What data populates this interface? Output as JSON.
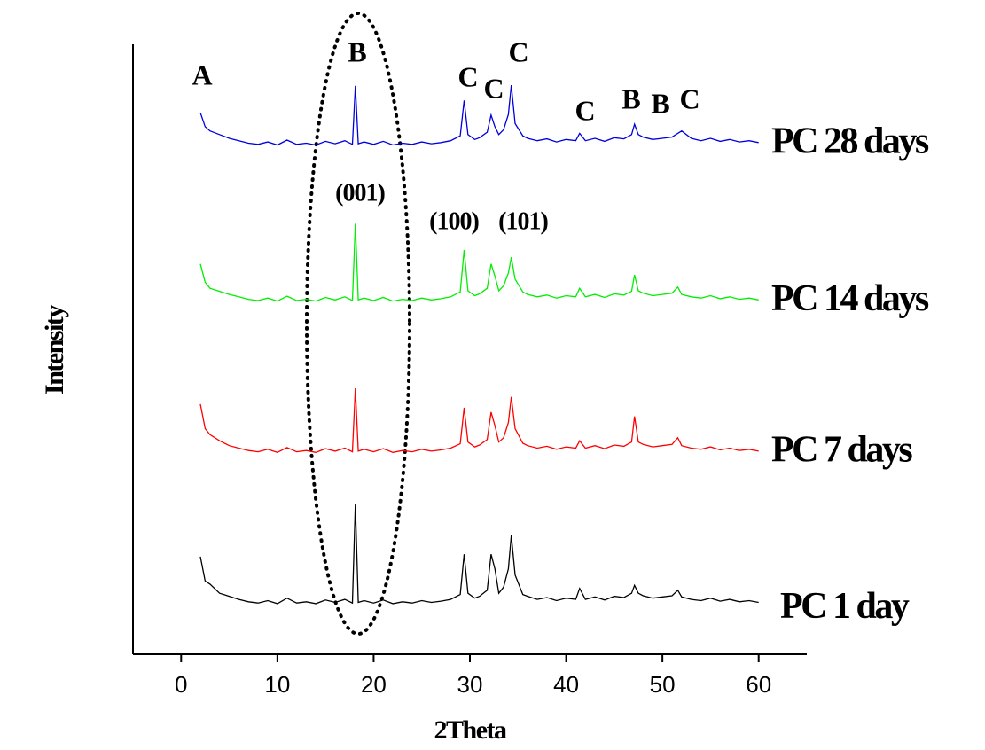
{
  "chart_data": {
    "type": "line",
    "xlabel": "2Theta",
    "ylabel": "Intensity",
    "xlim": [
      -5,
      65
    ],
    "xticks": [
      0,
      10,
      20,
      30,
      40,
      50,
      60
    ],
    "ylim": [
      0,
      100
    ],
    "x": [
      2,
      2.5,
      3,
      4,
      5,
      6,
      7,
      8,
      9,
      10,
      11,
      12,
      13,
      14,
      15,
      16,
      17,
      17.8,
      18.1,
      18.4,
      19,
      20,
      21,
      22,
      23,
      24,
      25,
      26,
      27,
      28,
      29,
      29.4,
      29.8,
      30.5,
      31,
      31.8,
      32.2,
      32.6,
      33,
      33.5,
      34,
      34.3,
      34.7,
      35.5,
      36,
      37,
      38,
      39,
      40,
      41,
      41.4,
      42,
      43,
      44,
      45,
      46,
      46.8,
      47.1,
      47.5,
      48,
      49,
      50,
      51,
      51.6,
      52,
      53,
      54,
      55,
      56,
      57,
      58,
      59,
      60
    ],
    "series": [
      {
        "name": "PC 1 day",
        "color": "#000000",
        "values": [
          16,
          12,
          11.5,
          10,
          9.5,
          9,
          8.6,
          8.4,
          8.8,
          8.3,
          9.2,
          8.4,
          8.6,
          8.3,
          8.9,
          8.5,
          9,
          8.4,
          24.7,
          8.5,
          8.8,
          8.4,
          8.9,
          8.3,
          8.6,
          8.4,
          8.8,
          8.5,
          8.7,
          9,
          9.8,
          16.4,
          10,
          9.2,
          9.5,
          10.5,
          16.4,
          14,
          10,
          11,
          14,
          19.5,
          13,
          9.8,
          9.5,
          9,
          9.3,
          8.8,
          9.2,
          9,
          10.8,
          9,
          9.4,
          8.9,
          9.5,
          9.3,
          10,
          11.3,
          10,
          9.6,
          9.2,
          9.4,
          9.6,
          10.5,
          9.4,
          9,
          8.8,
          9.2,
          8.7,
          9,
          8.6,
          8.8,
          8.5
        ]
      },
      {
        "name": "PC 7 days",
        "color": "#ff0000",
        "values": [
          41,
          37,
          36,
          35,
          34.2,
          33.8,
          33.4,
          33.2,
          33.6,
          33.1,
          33.9,
          33.2,
          33.4,
          33.1,
          33.7,
          33.3,
          33.8,
          33.2,
          43.6,
          33.3,
          33.6,
          33.2,
          33.7,
          33.1,
          33.4,
          33.2,
          33.6,
          33.3,
          33.5,
          33.8,
          34.5,
          40.4,
          34.8,
          34,
          34.3,
          35.2,
          39.7,
          37.5,
          34.8,
          35.5,
          38,
          42.2,
          37,
          34.6,
          34.2,
          33.8,
          34.1,
          33.6,
          34,
          33.8,
          35,
          33.8,
          34.2,
          33.7,
          34.3,
          34.1,
          34.8,
          39,
          34.8,
          34.4,
          34,
          34.2,
          34.4,
          35.5,
          34.2,
          33.8,
          33.6,
          34,
          33.5,
          33.8,
          33.4,
          33.6,
          33.3
        ]
      },
      {
        "name": "PC 14 days",
        "color": "#00ee00",
        "values": [
          64,
          61,
          60,
          59.5,
          59,
          58.6,
          58.2,
          58,
          58.4,
          57.9,
          58.7,
          58,
          58.2,
          57.9,
          58.5,
          58.1,
          58.6,
          58,
          70.6,
          58.1,
          58.4,
          58,
          58.5,
          57.9,
          58.2,
          58,
          58.4,
          58.1,
          58.3,
          58.6,
          59.4,
          66.3,
          59.6,
          58.8,
          59.1,
          60,
          64,
          62,
          59.6,
          60.4,
          62.5,
          65.1,
          61.5,
          59.4,
          59,
          58.6,
          58.9,
          58.4,
          58.8,
          58.6,
          60,
          58.6,
          59,
          58.5,
          59.1,
          58.9,
          59.5,
          62.2,
          59.6,
          59.2,
          58.8,
          59,
          59.2,
          60.2,
          59,
          58.6,
          58.4,
          58.8,
          58.3,
          58.6,
          58.2,
          58.4,
          58.1
        ]
      },
      {
        "name": "PC 28 days",
        "color": "#0000dd",
        "values": [
          88.8,
          86.5,
          85.8,
          85.2,
          84.6,
          84.2,
          83.8,
          83.6,
          84,
          83.5,
          84.3,
          83.6,
          83.8,
          83.5,
          84.1,
          83.7,
          84.2,
          83.6,
          93.2,
          83.7,
          84,
          83.6,
          84.1,
          83.5,
          83.8,
          83.6,
          84,
          83.7,
          83.9,
          84.2,
          85,
          90.8,
          85.2,
          84.4,
          84.7,
          85.6,
          88.4,
          86.5,
          85.2,
          86,
          88.5,
          93.3,
          87,
          85,
          84.6,
          84.2,
          84.5,
          84,
          84.4,
          84.2,
          85.4,
          84.2,
          84.6,
          84.1,
          84.7,
          84.5,
          85.2,
          86.9,
          85.2,
          84.8,
          84.4,
          84.6,
          84.8,
          85.4,
          85.8,
          84.6,
          84.2,
          84.6,
          84.1,
          84.4,
          84,
          84.2,
          83.9
        ]
      }
    ],
    "annotations": [
      "A",
      "B",
      "C",
      "C",
      "C",
      "C",
      "B",
      "B",
      "C",
      "(001)",
      "(100)",
      "(101)"
    ]
  }
}
